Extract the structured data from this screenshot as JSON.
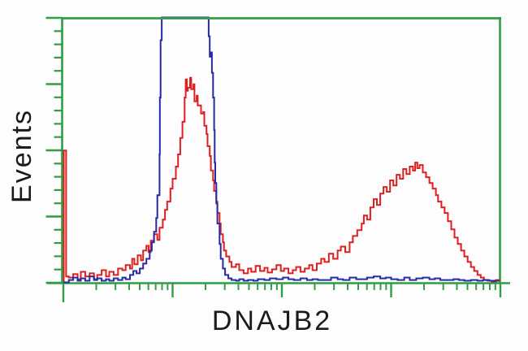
{
  "figure": {
    "kind": "flow-cytometry-overlay-histogram",
    "y_axis_label": "Events",
    "x_axis_label": "DNAJB2"
  },
  "colors": {
    "frame_green": "#2f9e44",
    "red_series": "#de1f1f",
    "blue_series": "#2829a6",
    "label_text": "#1b1b1b",
    "background": "#fdfdfd"
  },
  "chart_data": {
    "type": "line",
    "subtype": "step-histogram-overlay",
    "title": "",
    "xlabel": "DNAJB2",
    "ylabel": "Events",
    "x_scale": "log",
    "x_range_decades": [
      0,
      4
    ],
    "ylim": [
      0,
      100
    ],
    "grid": false,
    "legend": "none",
    "axis_tick_labels": "none (unlabeled ticks)",
    "x_ticks": {
      "major_decades": [
        0,
        1,
        2,
        3,
        4
      ],
      "minor": "log positions 2-9 within each decade"
    },
    "y_ticks": {
      "major_values": [
        0,
        25,
        50,
        75,
        100
      ],
      "minor_step": 5
    },
    "series": [
      {
        "name": "red-trace",
        "color": "#de1f1f",
        "clipped_at_top": false,
        "points": [
          [
            0,
            0
          ],
          [
            0.004,
            49.8
          ],
          [
            0.018,
            49.8
          ],
          [
            0.025,
            2.2
          ],
          [
            0.05,
            1.8
          ],
          [
            0.09,
            3.1
          ],
          [
            0.13,
            1.2
          ],
          [
            0.16,
            4.0
          ],
          [
            0.2,
            2.2
          ],
          [
            0.24,
            3.4
          ],
          [
            0.28,
            1.2
          ],
          [
            0.31,
            2.8
          ],
          [
            0.35,
            4.6
          ],
          [
            0.39,
            2.2
          ],
          [
            0.42,
            4.0
          ],
          [
            0.46,
            2.8
          ],
          [
            0.5,
            5.2
          ],
          [
            0.54,
            4.6
          ],
          [
            0.57,
            6.5
          ],
          [
            0.61,
            5.2
          ],
          [
            0.63,
            8.9
          ],
          [
            0.65,
            6.8
          ],
          [
            0.68,
            10.2
          ],
          [
            0.71,
            8.3
          ],
          [
            0.73,
            12.0
          ],
          [
            0.76,
            13.8
          ],
          [
            0.78,
            11.4
          ],
          [
            0.8,
            15.7
          ],
          [
            0.83,
            18.2
          ],
          [
            0.86,
            16.0
          ],
          [
            0.88,
            20.6
          ],
          [
            0.91,
            23.7
          ],
          [
            0.93,
            27.4
          ],
          [
            0.95,
            30.5
          ],
          [
            0.98,
            35.4
          ],
          [
            1.0,
            39.1
          ],
          [
            1.03,
            43.7
          ],
          [
            1.05,
            48.3
          ],
          [
            1.07,
            54.5
          ],
          [
            1.09,
            60.6
          ],
          [
            1.11,
            69.8
          ],
          [
            1.12,
            76.6
          ],
          [
            1.13,
            72.3
          ],
          [
            1.14,
            73.5
          ],
          [
            1.16,
            77.2
          ],
          [
            1.17,
            72.9
          ],
          [
            1.19,
            74.8
          ],
          [
            1.2,
            68.3
          ],
          [
            1.22,
            70.5
          ],
          [
            1.23,
            66.8
          ],
          [
            1.26,
            63.7
          ],
          [
            1.28,
            64.3
          ],
          [
            1.29,
            59.1
          ],
          [
            1.31,
            56.0
          ],
          [
            1.32,
            51.4
          ],
          [
            1.34,
            47.7
          ],
          [
            1.35,
            42.2
          ],
          [
            1.37,
            38.5
          ],
          [
            1.38,
            34.5
          ],
          [
            1.4,
            30.5
          ],
          [
            1.41,
            26.2
          ],
          [
            1.43,
            22.2
          ],
          [
            1.44,
            18.2
          ],
          [
            1.46,
            15.1
          ],
          [
            1.47,
            12.0
          ],
          [
            1.49,
            9.8
          ],
          [
            1.52,
            7.7
          ],
          [
            1.54,
            5.8
          ],
          [
            1.58,
            6.8
          ],
          [
            1.61,
            4.6
          ],
          [
            1.65,
            3.4
          ],
          [
            1.69,
            5.2
          ],
          [
            1.72,
            4.0
          ],
          [
            1.76,
            6.2
          ],
          [
            1.8,
            4.3
          ],
          [
            1.84,
            5.5
          ],
          [
            1.87,
            3.7
          ],
          [
            1.91,
            4.9
          ],
          [
            1.95,
            6.5
          ],
          [
            1.99,
            4.3
          ],
          [
            2.02,
            5.2
          ],
          [
            2.06,
            3.4
          ],
          [
            2.1,
            4.6
          ],
          [
            2.13,
            5.8
          ],
          [
            2.17,
            4.0
          ],
          [
            2.21,
            5.2
          ],
          [
            2.25,
            6.5
          ],
          [
            2.28,
            4.6
          ],
          [
            2.32,
            7.1
          ],
          [
            2.36,
            8.9
          ],
          [
            2.39,
            7.7
          ],
          [
            2.43,
            10.8
          ],
          [
            2.47,
            8.9
          ],
          [
            2.51,
            12.0
          ],
          [
            2.54,
            13.5
          ],
          [
            2.58,
            11.4
          ],
          [
            2.62,
            15.1
          ],
          [
            2.65,
            17.5
          ],
          [
            2.69,
            19.7
          ],
          [
            2.73,
            22.2
          ],
          [
            2.75,
            25.2
          ],
          [
            2.78,
            23.7
          ],
          [
            2.81,
            28.3
          ],
          [
            2.84,
            31.4
          ],
          [
            2.87,
            29.2
          ],
          [
            2.9,
            33.5
          ],
          [
            2.93,
            36.0
          ],
          [
            2.96,
            34.2
          ],
          [
            2.99,
            38.5
          ],
          [
            3.02,
            36.6
          ],
          [
            3.05,
            40.6
          ],
          [
            3.08,
            39.1
          ],
          [
            3.11,
            42.8
          ],
          [
            3.14,
            40.9
          ],
          [
            3.17,
            43.7
          ],
          [
            3.2,
            42.2
          ],
          [
            3.22,
            45.2
          ],
          [
            3.24,
            43.1
          ],
          [
            3.26,
            44.3
          ],
          [
            3.29,
            41.5
          ],
          [
            3.32,
            39.7
          ],
          [
            3.35,
            37.5
          ],
          [
            3.38,
            35.4
          ],
          [
            3.41,
            32.9
          ],
          [
            3.43,
            30.5
          ],
          [
            3.46,
            28.3
          ],
          [
            3.49,
            26.2
          ],
          [
            3.52,
            23.1
          ],
          [
            3.55,
            20.0
          ],
          [
            3.58,
            16.9
          ],
          [
            3.61,
            14.5
          ],
          [
            3.64,
            12.0
          ],
          [
            3.67,
            9.8
          ],
          [
            3.7,
            7.7
          ],
          [
            3.73,
            5.8
          ],
          [
            3.76,
            4.3
          ],
          [
            3.79,
            2.8
          ],
          [
            3.82,
            1.8
          ],
          [
            3.85,
            0.9
          ],
          [
            3.88,
            0.6
          ],
          [
            3.92,
            0.3
          ],
          [
            3.96,
            0.9
          ],
          [
            3.99,
            0.3
          ]
        ]
      },
      {
        "name": "blue-trace",
        "color": "#2829a6",
        "clipped_at_top": true,
        "points": [
          [
            0,
            0
          ],
          [
            0.05,
            0.9
          ],
          [
            0.09,
            1.8
          ],
          [
            0.13,
            0.6
          ],
          [
            0.16,
            1.5
          ],
          [
            0.2,
            0.6
          ],
          [
            0.24,
            2.2
          ],
          [
            0.28,
            0.9
          ],
          [
            0.31,
            1.5
          ],
          [
            0.35,
            0.6
          ],
          [
            0.39,
            1.2
          ],
          [
            0.42,
            0.6
          ],
          [
            0.46,
            1.5
          ],
          [
            0.5,
            0.9
          ],
          [
            0.54,
            1.8
          ],
          [
            0.57,
            1.2
          ],
          [
            0.61,
            2.8
          ],
          [
            0.64,
            4.3
          ],
          [
            0.67,
            3.4
          ],
          [
            0.7,
            5.2
          ],
          [
            0.73,
            7.1
          ],
          [
            0.76,
            8.9
          ],
          [
            0.79,
            12.0
          ],
          [
            0.81,
            15.1
          ],
          [
            0.83,
            19.1
          ],
          [
            0.85,
            24.3
          ],
          [
            0.86,
            32.9
          ],
          [
            0.88,
            48.3
          ],
          [
            0.883,
            69.8
          ],
          [
            0.89,
            91.4
          ],
          [
            0.9,
            104
          ],
          [
            1.32,
            104
          ],
          [
            1.33,
            92.9
          ],
          [
            1.34,
            85.2
          ],
          [
            1.35,
            86.8
          ],
          [
            1.36,
            79.1
          ],
          [
            1.37,
            69.8
          ],
          [
            1.38,
            57.5
          ],
          [
            1.385,
            45.2
          ],
          [
            1.39,
            37.5
          ],
          [
            1.4,
            29.8
          ],
          [
            1.41,
            22.2
          ],
          [
            1.43,
            14.5
          ],
          [
            1.44,
            8.9
          ],
          [
            1.46,
            5.2
          ],
          [
            1.48,
            2.8
          ],
          [
            1.51,
            1.5
          ],
          [
            1.54,
            0.9
          ],
          [
            1.58,
            0.6
          ],
          [
            1.61,
            1.2
          ],
          [
            1.65,
            0.6
          ],
          [
            1.69,
            0.9
          ],
          [
            1.74,
            0.6
          ],
          [
            1.78,
            1.2
          ],
          [
            1.84,
            0.9
          ],
          [
            1.89,
            1.5
          ],
          [
            1.95,
            1.2
          ],
          [
            2.01,
            1.8
          ],
          [
            2.06,
            1.2
          ],
          [
            2.11,
            0.9
          ],
          [
            2.17,
            1.5
          ],
          [
            2.23,
            0.9
          ],
          [
            2.28,
            1.2
          ],
          [
            2.33,
            0.9
          ],
          [
            2.39,
            0.9
          ],
          [
            2.45,
            1.8
          ],
          [
            2.51,
            1.2
          ],
          [
            2.56,
            0.9
          ],
          [
            2.62,
            1.8
          ],
          [
            2.68,
            1.2
          ],
          [
            2.73,
            1.2
          ],
          [
            2.78,
            1.8
          ],
          [
            2.84,
            2.2
          ],
          [
            2.9,
            1.5
          ],
          [
            2.95,
            1.8
          ],
          [
            3.0,
            1.2
          ],
          [
            3.06,
            0.9
          ],
          [
            3.12,
            1.8
          ],
          [
            3.17,
            0.9
          ],
          [
            3.23,
            1.5
          ],
          [
            3.29,
            1.8
          ],
          [
            3.35,
            1.2
          ],
          [
            3.4,
            1.5
          ],
          [
            3.45,
            0.9
          ],
          [
            3.51,
            0.9
          ],
          [
            3.57,
            1.2
          ],
          [
            3.62,
            0.9
          ],
          [
            3.67,
            0.6
          ],
          [
            3.73,
            0.9
          ],
          [
            3.79,
            0.6
          ],
          [
            3.84,
            0.9
          ],
          [
            3.9,
            0.6
          ],
          [
            3.96,
            0.6
          ],
          [
            3.99,
            0.6
          ]
        ]
      }
    ]
  }
}
